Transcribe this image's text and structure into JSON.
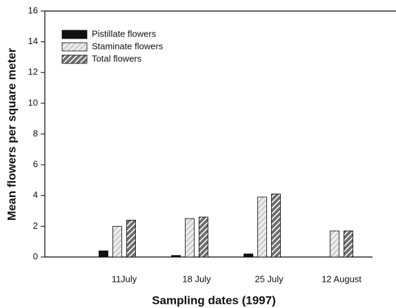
{
  "chart_data": {
    "type": "bar",
    "x_label": "Sampling dates (1997)",
    "y_label": "Mean flowers per square meter",
    "categories": [
      "11July",
      "18 July",
      "25 July",
      "12 August"
    ],
    "series": [
      {
        "name": "Pistillate flowers",
        "color": "#111111",
        "hatch": false,
        "values": [
          0.4,
          0.1,
          0.2,
          0
        ]
      },
      {
        "name": "Staminate flowers",
        "color": "#d4d4d4",
        "hatch": true,
        "values": [
          2.0,
          2.5,
          3.9,
          1.7
        ]
      },
      {
        "name": "Total flowers",
        "color": "#6e6e6e",
        "hatch": true,
        "values": [
          2.4,
          2.6,
          4.1,
          1.7
        ]
      }
    ],
    "ylim": [
      0,
      16
    ],
    "yticks": [
      0,
      2,
      4,
      6,
      8,
      10,
      12,
      14,
      16
    ],
    "legend": "upper left",
    "grid": false
  }
}
